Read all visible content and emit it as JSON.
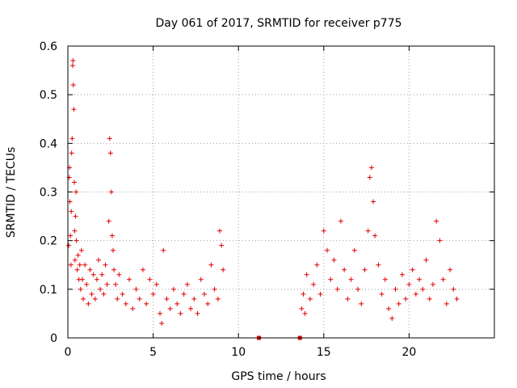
{
  "chart_data": {
    "type": "scatter",
    "title": "Day 061 of 2017, SRMTID for receiver p775",
    "xlabel": "GPS time / hours",
    "ylabel": "SRMTID / TECUs",
    "xlim": [
      0,
      25
    ],
    "ylim": [
      0,
      0.6
    ],
    "x_ticks": [
      0,
      5,
      10,
      15,
      20
    ],
    "x_tick_labels": [
      "0",
      "5",
      "10",
      "15",
      "20"
    ],
    "y_ticks": [
      0,
      0.1,
      0.2,
      0.3,
      0.4,
      0.5,
      0.6
    ],
    "y_tick_labels": [
      "0",
      "0.1",
      "0.2",
      "0.3",
      "0.4",
      "0.5",
      "0.6"
    ],
    "grid": true,
    "marker": "plus",
    "color": "#e00000",
    "series": [
      {
        "name": "SRMTID",
        "x": [
          0.05,
          0.08,
          0.1,
          0.12,
          0.15,
          0.18,
          0.2,
          0.22,
          0.25,
          0.28,
          0.3,
          0.32,
          0.35,
          0.38,
          0.4,
          0.42,
          0.45,
          0.48,
          0.5,
          0.55,
          0.6,
          0.65,
          0.7,
          0.75,
          0.8,
          0.85,
          0.9,
          1.0,
          1.1,
          1.2,
          1.3,
          1.4,
          1.5,
          1.6,
          1.7,
          1.8,
          1.9,
          2.0,
          2.1,
          2.2,
          2.3,
          2.4,
          2.45,
          2.5,
          2.55,
          2.6,
          2.65,
          2.7,
          2.8,
          2.9,
          3.0,
          3.2,
          3.4,
          3.6,
          3.8,
          4.0,
          4.2,
          4.4,
          4.6,
          4.8,
          5.0,
          5.2,
          5.4,
          5.5,
          5.6,
          5.8,
          6.0,
          6.2,
          6.4,
          6.6,
          6.8,
          7.0,
          7.2,
          7.4,
          7.6,
          7.8,
          8.0,
          8.2,
          8.4,
          8.6,
          8.8,
          8.9,
          9.0,
          9.1,
          13.7,
          13.8,
          13.9,
          14.0,
          14.2,
          14.4,
          14.6,
          14.8,
          15.0,
          15.2,
          15.4,
          15.6,
          15.8,
          16.0,
          16.2,
          16.4,
          16.6,
          16.8,
          17.0,
          17.2,
          17.4,
          17.6,
          17.7,
          17.8,
          17.9,
          18.0,
          18.2,
          18.4,
          18.6,
          18.8,
          19.0,
          19.2,
          19.4,
          19.6,
          19.8,
          20.0,
          20.2,
          20.4,
          20.6,
          20.8,
          21.0,
          21.2,
          21.4,
          21.6,
          21.8,
          22.0,
          22.2,
          22.4,
          22.6,
          22.8
        ],
        "y": [
          0.19,
          0.33,
          0.35,
          0.28,
          0.21,
          0.15,
          0.26,
          0.38,
          0.41,
          0.56,
          0.57,
          0.52,
          0.47,
          0.32,
          0.22,
          0.16,
          0.25,
          0.3,
          0.2,
          0.14,
          0.17,
          0.12,
          0.15,
          0.1,
          0.18,
          0.12,
          0.08,
          0.15,
          0.11,
          0.07,
          0.14,
          0.09,
          0.13,
          0.08,
          0.12,
          0.16,
          0.1,
          0.13,
          0.09,
          0.15,
          0.11,
          0.24,
          0.41,
          0.38,
          0.3,
          0.21,
          0.18,
          0.14,
          0.11,
          0.08,
          0.13,
          0.09,
          0.07,
          0.12,
          0.06,
          0.1,
          0.08,
          0.14,
          0.07,
          0.12,
          0.09,
          0.11,
          0.05,
          0.03,
          0.18,
          0.08,
          0.06,
          0.1,
          0.07,
          0.05,
          0.09,
          0.11,
          0.06,
          0.08,
          0.05,
          0.12,
          0.09,
          0.07,
          0.15,
          0.1,
          0.08,
          0.22,
          0.19,
          0.14,
          0.06,
          0.09,
          0.05,
          0.13,
          0.08,
          0.11,
          0.15,
          0.09,
          0.22,
          0.18,
          0.12,
          0.16,
          0.1,
          0.24,
          0.14,
          0.08,
          0.12,
          0.18,
          0.1,
          0.07,
          0.14,
          0.22,
          0.33,
          0.35,
          0.28,
          0.21,
          0.15,
          0.09,
          0.12,
          0.06,
          0.04,
          0.1,
          0.07,
          0.13,
          0.08,
          0.11,
          0.14,
          0.09,
          0.12,
          0.1,
          0.16,
          0.08,
          0.11,
          0.24,
          0.2,
          0.12,
          0.07,
          0.14,
          0.1,
          0.08
        ]
      },
      {
        "name": "data gap markers",
        "x": [
          11.2,
          13.6
        ],
        "y": [
          0,
          0
        ]
      }
    ]
  }
}
